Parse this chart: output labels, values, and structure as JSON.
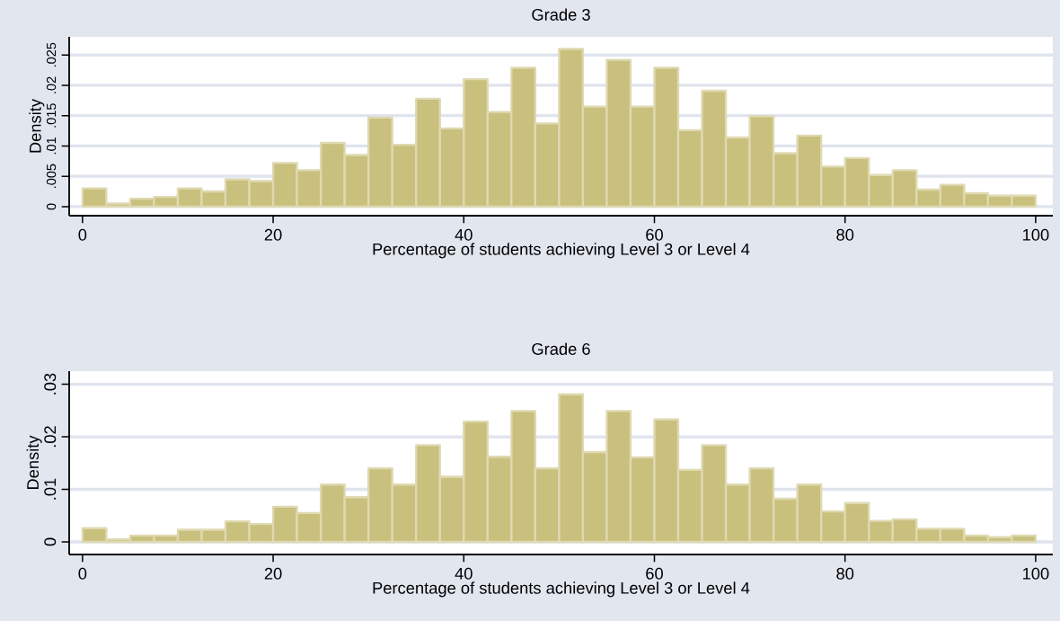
{
  "chart_data": [
    {
      "type": "histogram",
      "title": "Grade 3",
      "xlabel": "Percentage of students achieving Level 3 or Level 4",
      "ylabel": "Density",
      "color": "#c9c07e",
      "grid": "y",
      "bins": [
        0,
        2.5,
        5,
        7.5,
        10,
        12.5,
        15,
        17.5,
        20,
        22.5,
        25,
        27.5,
        30,
        32.5,
        35,
        37.5,
        40,
        42.5,
        45,
        47.5,
        50,
        52.5,
        55,
        57.5,
        60,
        62.5,
        65,
        67.5,
        70,
        72.5,
        75,
        77.5,
        80,
        82.5,
        85,
        87.5,
        90,
        92.5,
        95,
        97.5,
        100
      ],
      "values": [
        0.003,
        0.0005,
        0.0013,
        0.0016,
        0.003,
        0.0025,
        0.0045,
        0.0042,
        0.0072,
        0.006,
        0.0105,
        0.0085,
        0.0147,
        0.0102,
        0.0178,
        0.0129,
        0.021,
        0.0156,
        0.0229,
        0.0137,
        0.026,
        0.0165,
        0.0242,
        0.0165,
        0.0229,
        0.0126,
        0.0191,
        0.0114,
        0.0149,
        0.0088,
        0.0117,
        0.0066,
        0.008,
        0.0052,
        0.006,
        0.0028,
        0.0036,
        0.0022,
        0.0018,
        0.0018
      ],
      "xlim": [
        -1.4,
        101.8
      ],
      "ylim": [
        -0.0015,
        0.028
      ],
      "xticks": [
        0,
        20,
        40,
        60,
        80,
        100
      ],
      "yticks": [
        {
          "value": 0,
          "label": "0"
        },
        {
          "value": 0.005,
          "label": ".005"
        },
        {
          "value": 0.01,
          "label": ".01"
        },
        {
          "value": 0.015,
          "label": ".015"
        },
        {
          "value": 0.02,
          "label": ".02"
        },
        {
          "value": 0.025,
          "label": ".025"
        }
      ]
    },
    {
      "type": "histogram",
      "title": "Grade 6",
      "xlabel": "Percentage of students achieving Level 3 or Level 4",
      "ylabel": "Density",
      "color": "#c9c07e",
      "grid": "y",
      "bins": [
        0,
        2.5,
        5,
        7.5,
        10,
        12.5,
        15,
        17.5,
        20,
        22.5,
        25,
        27.5,
        30,
        32.5,
        35,
        37.5,
        40,
        42.5,
        45,
        47.5,
        50,
        52.5,
        55,
        57.5,
        60,
        62.5,
        65,
        67.5,
        70,
        72.5,
        75,
        77.5,
        80,
        82.5,
        85,
        87.5,
        90,
        92.5,
        95,
        97.5,
        100
      ],
      "values": [
        0.0026,
        0.0005,
        0.0012,
        0.0012,
        0.0023,
        0.0023,
        0.0039,
        0.0034,
        0.0067,
        0.0055,
        0.0109,
        0.0085,
        0.014,
        0.0109,
        0.0184,
        0.0124,
        0.0229,
        0.0162,
        0.0249,
        0.014,
        0.0281,
        0.0171,
        0.0249,
        0.0161,
        0.0233,
        0.0137,
        0.0184,
        0.0109,
        0.014,
        0.0082,
        0.0109,
        0.0058,
        0.0074,
        0.004,
        0.0043,
        0.0025,
        0.0025,
        0.0012,
        0.0009,
        0.0012
      ],
      "xlim": [
        -1.4,
        101.8
      ],
      "ylim": [
        -0.0024,
        0.0325
      ],
      "xticks": [
        0,
        20,
        40,
        60,
        80,
        100
      ],
      "yticks": [
        {
          "value": 0,
          "label": "0"
        },
        {
          "value": 0.01,
          "label": ".01"
        },
        {
          "value": 0.02,
          "label": ".02"
        },
        {
          "value": 0.03,
          "label": ".03"
        }
      ]
    }
  ]
}
